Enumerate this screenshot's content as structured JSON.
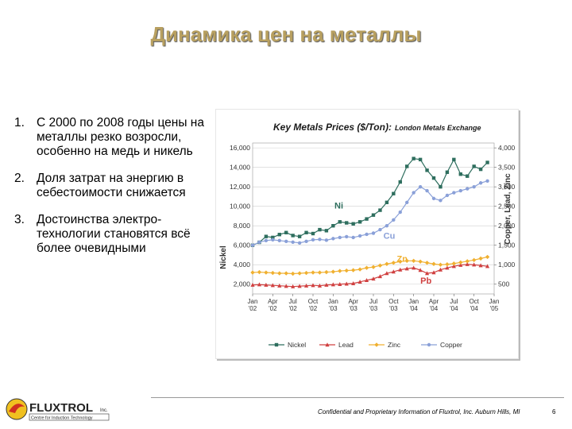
{
  "slide": {
    "title": "Динамика цен на металлы",
    "bullets": [
      {
        "num": "1.",
        "text": "С 2000 по 2008 годы цены на металлы резко возросли, особенно на медь и никель"
      },
      {
        "num": "2.",
        "text": "Доля затрат на энергию в себестоимости снижается"
      },
      {
        "num": "3.",
        "text": "Достоинства электро-технологии становятся всё более очевидными"
      }
    ],
    "footer": "Confidential and Proprietary Information of Fluxtrol, Inc. Auburn Hills, MI",
    "page_number": "6",
    "logo": {
      "name": "FLUXTROL",
      "suffix": "Inc.",
      "tagline": "Centre for Induction Technology"
    }
  },
  "chart_data": {
    "type": "line",
    "title": "Key Metals Prices ($/Ton):",
    "subtitle": "London Metals Exchange",
    "ylabel_left": "Nickel",
    "ylabel_right": "Copper, Lead, Zinc",
    "y_left_ticks": [
      "2,000",
      "4,000",
      "6,000",
      "8,000",
      "10,000",
      "12,000",
      "14,000",
      "16,000"
    ],
    "y_right_ticks": [
      "500",
      "1,000",
      "1,500",
      "2,000",
      "2,500",
      "3,000",
      "3,500",
      "4,000"
    ],
    "y_left_lim": [
      1000,
      16500
    ],
    "y_right_lim": [
      250,
      4125
    ],
    "x_ticks": [
      {
        "l1": "Jan",
        "l2": "'02"
      },
      {
        "l1": "Apr",
        "l2": "'02"
      },
      {
        "l1": "Jul",
        "l2": "'02"
      },
      {
        "l1": "Oct",
        "l2": "'02"
      },
      {
        "l1": "Jan",
        "l2": "'03"
      },
      {
        "l1": "Apr",
        "l2": "'03"
      },
      {
        "l1": "Jul",
        "l2": "'03"
      },
      {
        "l1": "Oct",
        "l2": "'03"
      },
      {
        "l1": "Jan",
        "l2": "'04"
      },
      {
        "l1": "Apr",
        "l2": "'04"
      },
      {
        "l1": "Jul",
        "l2": "'04"
      },
      {
        "l1": "Oct",
        "l2": "'04"
      },
      {
        "l1": "Jan",
        "l2": "'05"
      }
    ],
    "months": 36,
    "grid": true,
    "legend_position": "bottom",
    "series": [
      {
        "name": "Nickel",
        "axis": "left",
        "marker": "square",
        "color": "#2e6e5e",
        "label": "Ni",
        "values": [
          6000,
          6300,
          6900,
          6800,
          7100,
          7300,
          7000,
          6900,
          7300,
          7200,
          7600,
          7500,
          8000,
          8400,
          8300,
          8200,
          8400,
          8700,
          9100,
          9600,
          10400,
          11300,
          12500,
          14100,
          14900,
          14800,
          13700,
          12900,
          12000,
          13500,
          14800,
          13300,
          13100,
          14100,
          13800,
          14500
        ]
      },
      {
        "name": "Lead",
        "axis": "right",
        "marker": "triangle",
        "color": "#d04040",
        "label": "Pb",
        "values": [
          480,
          490,
          480,
          470,
          460,
          450,
          440,
          450,
          460,
          470,
          460,
          480,
          490,
          500,
          510,
          520,
          560,
          600,
          640,
          700,
          780,
          820,
          870,
          900,
          920,
          860,
          780,
          800,
          870,
          920,
          960,
          990,
          1010,
          1000,
          980,
          960
        ]
      },
      {
        "name": "Zinc",
        "axis": "right",
        "marker": "diamond",
        "color": "#f0b030",
        "label": "Zn",
        "values": [
          800,
          810,
          800,
          790,
          780,
          780,
          770,
          780,
          790,
          800,
          800,
          810,
          820,
          840,
          850,
          860,
          880,
          920,
          940,
          980,
          1020,
          1050,
          1080,
          1100,
          1100,
          1080,
          1050,
          1020,
          1000,
          1010,
          1030,
          1060,
          1090,
          1120,
          1160,
          1200
        ]
      },
      {
        "name": "Copper",
        "axis": "right",
        "marker": "circle",
        "color": "#8aa0d8",
        "label": "Cu",
        "values": [
          1500,
          1580,
          1620,
          1640,
          1620,
          1600,
          1580,
          1560,
          1600,
          1640,
          1650,
          1630,
          1670,
          1700,
          1720,
          1700,
          1740,
          1780,
          1810,
          1900,
          2000,
          2150,
          2350,
          2600,
          2850,
          3000,
          2900,
          2700,
          2650,
          2780,
          2850,
          2900,
          2950,
          3000,
          3100,
          3150
        ]
      }
    ]
  }
}
